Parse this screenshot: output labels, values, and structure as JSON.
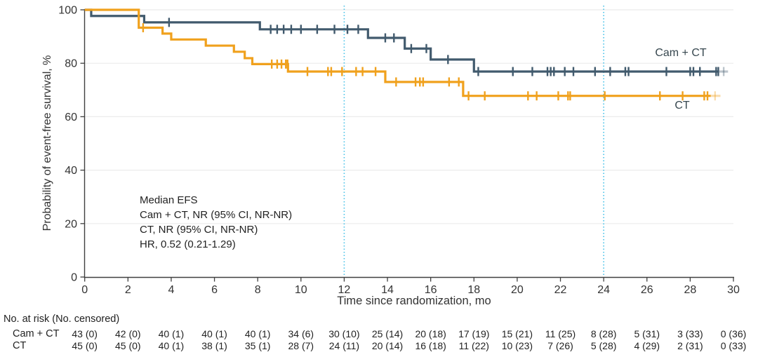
{
  "figure": {
    "background": "#ffffff",
    "curve_labels": {
      "cam_ct": "Cam + CT",
      "ct": "CT"
    }
  },
  "chart_data": {
    "type": "line",
    "subtype": "kaplan-meier-step",
    "title": "",
    "xlabel": "Time since randomization, mo",
    "ylabel": "Probability of event-free survival, %",
    "xlim": [
      0,
      30
    ],
    "ylim": [
      0,
      100
    ],
    "x_ticks": [
      0,
      2,
      4,
      6,
      8,
      10,
      12,
      14,
      16,
      18,
      20,
      22,
      24,
      26,
      28,
      30
    ],
    "y_ticks": [
      0,
      20,
      40,
      60,
      80,
      100
    ],
    "grid": "horizontal-light",
    "reference_lines_x": [
      12,
      24
    ],
    "annotation": [
      "Median EFS",
      "Cam + CT, NR (95% CI, NR-NR)",
      "CT, NR (95% CI, NR-NR)",
      "HR, 0.52 (0.21-1.29)"
    ],
    "colors": {
      "cam_ct": "#415a6d",
      "ct": "#f0a11d",
      "reference": "#45c1e8",
      "grid": "#ebebeb",
      "axis": "#3f3f3f",
      "text": "#333333"
    },
    "series": [
      {
        "name": "Cam + CT",
        "color": "#415a6d",
        "steps": [
          [
            0,
            100
          ],
          [
            0.3,
            97.7
          ],
          [
            2.75,
            95.3
          ],
          [
            8.1,
            92.7
          ],
          [
            13.1,
            89.5
          ],
          [
            14.8,
            85.5
          ],
          [
            16.0,
            81.4
          ],
          [
            18.0,
            76.9
          ]
        ],
        "end": 29.3,
        "fade_end": 29.75,
        "fade_censor": 29.55,
        "censors": [
          [
            3.9,
            95.3
          ],
          [
            8.6,
            92.7
          ],
          [
            8.9,
            92.7
          ],
          [
            9.2,
            92.7
          ],
          [
            9.55,
            92.7
          ],
          [
            10.0,
            92.7
          ],
          [
            10.75,
            92.7
          ],
          [
            11.55,
            92.7
          ],
          [
            12.15,
            92.7
          ],
          [
            12.65,
            92.7
          ],
          [
            13.9,
            89.5
          ],
          [
            14.3,
            89.5
          ],
          [
            15.1,
            85.5
          ],
          [
            15.8,
            85.5
          ],
          [
            16.8,
            81.4
          ],
          [
            18.2,
            76.9
          ],
          [
            19.8,
            76.9
          ],
          [
            20.7,
            76.9
          ],
          [
            21.4,
            76.9
          ],
          [
            21.55,
            76.9
          ],
          [
            21.7,
            76.9
          ],
          [
            22.2,
            76.9
          ],
          [
            22.6,
            76.9
          ],
          [
            23.6,
            76.9
          ],
          [
            24.3,
            76.9
          ],
          [
            25.0,
            76.9
          ],
          [
            25.15,
            76.9
          ],
          [
            26.9,
            76.9
          ],
          [
            28.0,
            76.9
          ],
          [
            28.15,
            76.9
          ],
          [
            28.45,
            76.9
          ],
          [
            29.2,
            76.9
          ],
          [
            29.3,
            76.9
          ]
        ]
      },
      {
        "name": "CT",
        "color": "#f0a11d",
        "steps": [
          [
            0,
            100
          ],
          [
            2.5,
            93.3
          ],
          [
            3.6,
            91.1
          ],
          [
            4.0,
            88.9
          ],
          [
            5.6,
            86.6
          ],
          [
            6.9,
            84.3
          ],
          [
            7.4,
            81.9
          ],
          [
            7.75,
            79.7
          ],
          [
            9.4,
            76.9
          ],
          [
            13.9,
            73.0
          ],
          [
            17.5,
            67.8
          ]
        ],
        "end": 28.95,
        "fade_end": 29.4,
        "fade_censor": 29.15,
        "censors": [
          [
            2.7,
            93.3
          ],
          [
            8.65,
            79.7
          ],
          [
            8.9,
            79.7
          ],
          [
            9.1,
            79.7
          ],
          [
            9.3,
            79.7
          ],
          [
            9.38,
            79.7
          ],
          [
            10.3,
            76.9
          ],
          [
            11.25,
            76.9
          ],
          [
            11.4,
            76.9
          ],
          [
            11.9,
            76.9
          ],
          [
            12.55,
            76.9
          ],
          [
            12.85,
            76.9
          ],
          [
            13.45,
            76.9
          ],
          [
            14.4,
            73.0
          ],
          [
            15.3,
            73.0
          ],
          [
            15.5,
            73.0
          ],
          [
            15.65,
            73.0
          ],
          [
            16.85,
            73.0
          ],
          [
            17.3,
            73.0
          ],
          [
            17.75,
            67.8
          ],
          [
            18.5,
            67.8
          ],
          [
            20.5,
            67.8
          ],
          [
            20.9,
            67.8
          ],
          [
            21.9,
            67.8
          ],
          [
            22.35,
            67.8
          ],
          [
            22.45,
            67.8
          ],
          [
            24.05,
            67.8
          ],
          [
            26.6,
            67.8
          ],
          [
            27.65,
            67.8
          ],
          [
            28.65,
            67.8
          ],
          [
            28.8,
            67.8
          ]
        ]
      }
    ],
    "risk_table": {
      "header": "No. at risk (No. censored)",
      "times": [
        0,
        2,
        4,
        6,
        8,
        10,
        12,
        14,
        16,
        18,
        20,
        22,
        24,
        26,
        28,
        30
      ],
      "rows": [
        {
          "label": "Cam + CT",
          "values": [
            "43 (0)",
            "42 (0)",
            "40 (1)",
            "40 (1)",
            "40 (1)",
            "34 (6)",
            "30 (10)",
            "25 (14)",
            "20 (18)",
            "17 (19)",
            "15 (21)",
            "11 (25)",
            "8 (28)",
            "5 (31)",
            "3 (33)",
            "0 (36)"
          ]
        },
        {
          "label": "CT",
          "values": [
            "45 (0)",
            "45 (0)",
            "40 (1)",
            "38 (1)",
            "35 (1)",
            "28 (7)",
            "24 (11)",
            "20 (14)",
            "16 (18)",
            "11 (22)",
            "10 (23)",
            "7 (26)",
            "5 (28)",
            "4 (29)",
            "2 (31)",
            "0 (33)"
          ]
        }
      ]
    }
  }
}
